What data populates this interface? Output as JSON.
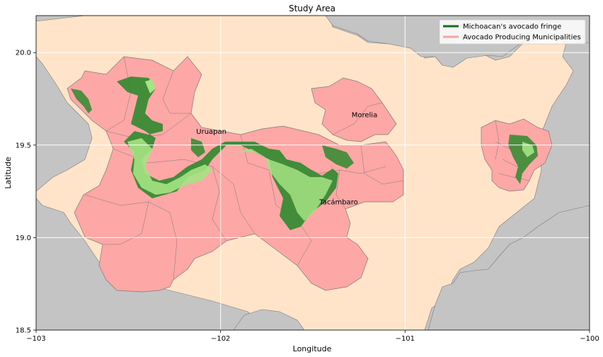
{
  "title": "Study Area",
  "xlabel": "Longitude",
  "ylabel": "Latitude",
  "x_ticks": [
    "−103",
    "−102",
    "−101",
    "−100"
  ],
  "y_ticks": [
    "18.5",
    "19.0",
    "19.5",
    "20.0"
  ],
  "xlim": [
    -103,
    -100
  ],
  "ylim": [
    18.5,
    20.2
  ],
  "cities": [
    {
      "name": "Uruapan",
      "lon": -102.05,
      "lat": 19.56
    },
    {
      "name": "Morelia",
      "lon": -101.22,
      "lat": 19.65
    },
    {
      "name": "Tacámbaro",
      "lon": -101.36,
      "lat": 19.18
    }
  ],
  "legend": {
    "placement": "top-right",
    "items": [
      {
        "label": "Michoacan's avocado fringe",
        "color": "#1a6b1a"
      },
      {
        "label": "Avocado Producing Municipalities",
        "color": "#f5a3a3"
      }
    ]
  },
  "colors": {
    "outside_region": "#c4c4c4",
    "state_background": "#ffe4c9",
    "municipality_fill": "#fda7a7",
    "fringe_dark": "#2f8a2f",
    "fringe_light": "#a5e384",
    "grid": "#ffffff"
  },
  "grid": true
}
